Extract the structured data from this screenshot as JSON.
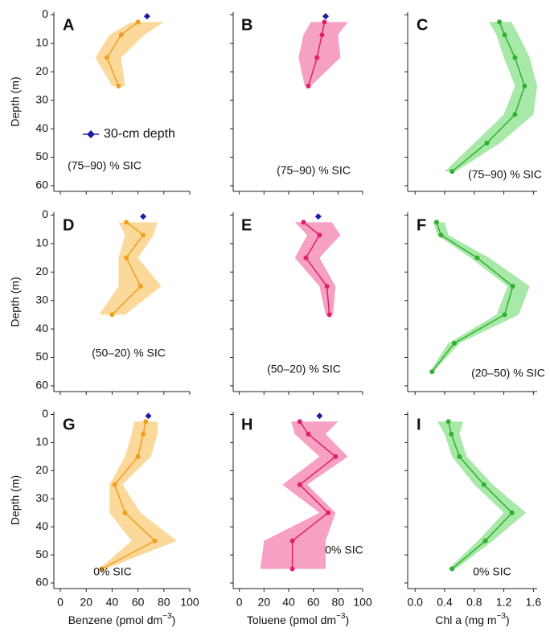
{
  "chart_data": [
    {
      "type": "line",
      "label": "A",
      "annotation": "(75–90) % SIC",
      "ylabel": "Depth (m)",
      "marker_name": "30-cm depth",
      "x": [
        60,
        47,
        36,
        45
      ],
      "y": [
        2.5,
        7,
        15,
        25
      ],
      "band_lower": [
        55,
        38,
        27,
        40
      ],
      "band_upper": [
        80,
        65,
        47,
        50
      ],
      "marker_x": 67,
      "marker_y": 0.5,
      "color": "#f0a020",
      "band_color": "#fbd99a",
      "marker_color": "#1c1ca8",
      "xlim": [
        -5,
        100
      ],
      "xticks": [
        0,
        20,
        40,
        60,
        80,
        100
      ],
      "ylim": [
        -1,
        62
      ],
      "yticks": [
        0,
        10,
        20,
        30,
        40,
        50,
        60
      ],
      "y_inverted": true
    },
    {
      "type": "line",
      "label": "B",
      "annotation": "(75–90) % SIC",
      "x": [
        69,
        67,
        63,
        56
      ],
      "y": [
        2.5,
        7,
        15,
        25
      ],
      "band_lower": [
        58,
        52,
        48,
        53
      ],
      "band_upper": [
        88,
        80,
        82,
        58
      ],
      "marker_x": 70,
      "marker_y": 0.5,
      "color": "#e0206a",
      "band_color": "#f6a0c4",
      "marker_color": "#1c1ca8",
      "xlim": [
        -5,
        100
      ],
      "xticks": [
        0,
        20,
        40,
        60,
        80,
        100
      ],
      "ylim": [
        -1,
        62
      ],
      "yticks": [
        0,
        10,
        20,
        30,
        40,
        50,
        60
      ],
      "y_inverted": true
    },
    {
      "type": "line",
      "label": "C",
      "annotation": "(75–90) % SIC",
      "x": [
        1.14,
        1.21,
        1.35,
        1.48,
        1.35,
        0.97,
        0.5
      ],
      "y": [
        2.5,
        7,
        15,
        25,
        35,
        45,
        55
      ],
      "band_lower": [
        1.0,
        1.1,
        1.2,
        1.35,
        1.2,
        0.8,
        0.4
      ],
      "band_upper": [
        1.3,
        1.4,
        1.55,
        1.65,
        1.6,
        1.15,
        0.55
      ],
      "color": "#30b030",
      "band_color": "#a8e8a8",
      "xlim": [
        -0.1,
        1.65
      ],
      "xticks": [
        {
          "value": 0,
          "label": "0.0"
        },
        0.4,
        0.8,
        1.2,
        1.6
      ],
      "ylim": [
        -1,
        62
      ],
      "yticks": [
        0,
        10,
        20,
        30,
        40,
        50,
        60
      ],
      "y_inverted": true
    },
    {
      "type": "line",
      "label": "D",
      "annotation": "(50–20) % SIC",
      "ylabel": "Depth (m)",
      "x": [
        51,
        64,
        51,
        62,
        40
      ],
      "y": [
        2.5,
        7,
        15,
        25,
        35
      ],
      "band_lower": [
        45,
        50,
        45,
        45,
        30
      ],
      "band_upper": [
        75,
        72,
        60,
        78,
        50
      ],
      "marker_x": 64,
      "marker_y": 0.5,
      "color": "#f0a020",
      "band_color": "#fbd99a",
      "marker_color": "#1c1ca8",
      "xlim": [
        -5,
        100
      ],
      "xticks": [
        0,
        20,
        40,
        60,
        80,
        100
      ],
      "ylim": [
        -1,
        62
      ],
      "yticks": [
        0,
        10,
        20,
        30,
        40,
        50,
        60
      ],
      "y_inverted": true
    },
    {
      "type": "line",
      "label": "E",
      "annotation": "(50–20) % SIC",
      "x": [
        52,
        65,
        54,
        71,
        73
      ],
      "y": [
        2.5,
        7,
        15,
        25,
        35
      ],
      "band_lower": [
        45,
        55,
        45,
        65,
        70
      ],
      "band_upper": [
        75,
        82,
        65,
        78,
        76
      ],
      "marker_x": 64,
      "marker_y": 0.5,
      "color": "#e0206a",
      "band_color": "#f6a0c4",
      "marker_color": "#1c1ca8",
      "xlim": [
        -5,
        100
      ],
      "xticks": [
        0,
        20,
        40,
        60,
        80,
        100
      ],
      "ylim": [
        -1,
        62
      ],
      "yticks": [
        0,
        10,
        20,
        30,
        40,
        50,
        60
      ],
      "y_inverted": true
    },
    {
      "type": "line",
      "label": "F",
      "annotation": "(20–50) % SIC",
      "x": [
        0.29,
        0.35,
        0.84,
        1.32,
        1.21,
        0.53,
        0.23
      ],
      "y": [
        2.5,
        7,
        15,
        25,
        35,
        45,
        55
      ],
      "band_lower": [
        0.25,
        0.3,
        0.75,
        1.25,
        1.1,
        0.45,
        0.2
      ],
      "band_upper": [
        0.4,
        0.45,
        1.0,
        1.55,
        1.4,
        0.6,
        0.25
      ],
      "color": "#30b030",
      "band_color": "#a8e8a8",
      "xlim": [
        -0.1,
        1.65
      ],
      "xticks": [
        {
          "value": 0,
          "label": "0.0"
        },
        0.4,
        0.8,
        1.2,
        1.6
      ],
      "ylim": [
        -1,
        62
      ],
      "yticks": [
        0,
        10,
        20,
        30,
        40,
        50,
        60
      ],
      "y_inverted": true
    },
    {
      "type": "line",
      "label": "G",
      "annotation": "0% SIC",
      "ylabel": "Depth (m)",
      "xlabel": [
        "Benzene (pmol dm",
        "−3",
        ")"
      ],
      "x": [
        66,
        64,
        60,
        42,
        50,
        73,
        32
      ],
      "y": [
        2.5,
        7,
        15,
        25,
        35,
        45,
        55
      ],
      "band_lower": [
        57,
        55,
        50,
        38,
        38,
        55,
        30
      ],
      "band_upper": [
        75,
        75,
        70,
        48,
        62,
        90,
        35
      ],
      "marker_x": 68,
      "marker_y": 0.5,
      "color": "#f0a020",
      "band_color": "#fbd99a",
      "marker_color": "#1c1ca8",
      "xlim": [
        -5,
        100
      ],
      "xticks": [
        0,
        20,
        40,
        60,
        80,
        100
      ],
      "ylim": [
        -1,
        62
      ],
      "yticks": [
        0,
        10,
        20,
        30,
        40,
        50,
        60
      ],
      "y_inverted": true
    },
    {
      "type": "line",
      "label": "H",
      "annotation": "0% SIC",
      "xlabel": [
        "Toluene (pmol dm",
        "−3",
        ")"
      ],
      "x": [
        49,
        56,
        78,
        49,
        72,
        43,
        43
      ],
      "y": [
        2.5,
        7,
        15,
        25,
        35,
        45,
        55
      ],
      "band_lower": [
        42,
        45,
        65,
        35,
        65,
        20,
        17
      ],
      "band_upper": [
        80,
        70,
        88,
        55,
        78,
        70,
        70
      ],
      "marker_x": 65,
      "marker_y": 0.5,
      "color": "#e0206a",
      "band_color": "#f6a0c4",
      "marker_color": "#1c1ca8",
      "xlim": [
        -5,
        100
      ],
      "xticks": [
        0,
        20,
        40,
        60,
        80,
        100
      ],
      "ylim": [
        -1,
        62
      ],
      "yticks": [
        0,
        10,
        20,
        30,
        40,
        50,
        60
      ],
      "y_inverted": true
    },
    {
      "type": "line",
      "label": "I",
      "annotation": "0% SIC",
      "xlabel": [
        "Chl a (mg m",
        "−3",
        ")"
      ],
      "x": [
        0.45,
        0.49,
        0.6,
        0.93,
        1.31,
        0.95,
        0.5
      ],
      "y": [
        2.5,
        7,
        15,
        25,
        35,
        45,
        55
      ],
      "band_lower": [
        0.3,
        0.4,
        0.5,
        0.8,
        1.2,
        0.85,
        0.45
      ],
      "band_upper": [
        0.65,
        0.6,
        0.7,
        1.05,
        1.5,
        1.05,
        0.55
      ],
      "color": "#30b030",
      "band_color": "#a8e8a8",
      "xlim": [
        -0.1,
        1.65
      ],
      "xticks": [
        {
          "value": 0,
          "label": "0.0"
        },
        0.4,
        0.8,
        1.2,
        1.6
      ],
      "ylim": [
        -1,
        62
      ],
      "yticks": [
        0,
        10,
        20,
        30,
        40,
        50,
        60
      ],
      "y_inverted": true
    }
  ]
}
